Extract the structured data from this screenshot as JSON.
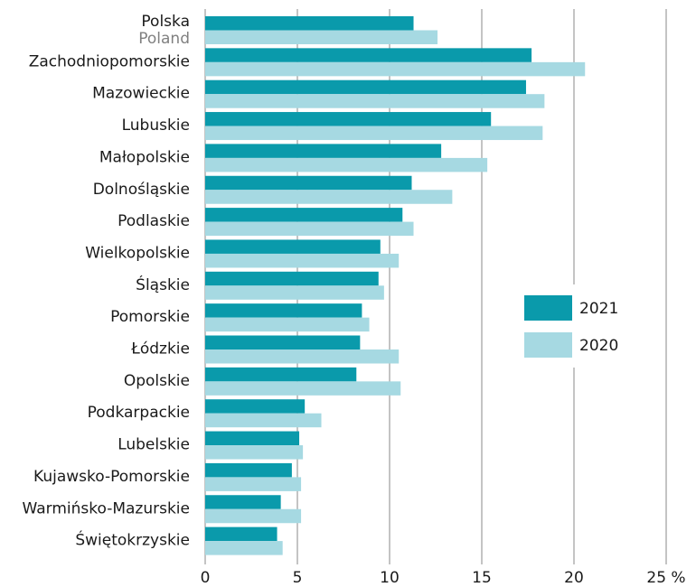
{
  "chart_data": {
    "type": "bar",
    "orientation": "horizontal",
    "categories": [
      "Polska",
      "Zachodniopomorskie",
      "Mazowieckie",
      "Lubuskie",
      "Małopolskie",
      "Dolnośląskie",
      "Podlaskie",
      "Wielkopolskie",
      "Śląskie",
      "Pomorskie",
      "Łódzkie",
      "Opolskie",
      "Podkarpackie",
      "Lubelskie",
      "Kujawsko-Pomorskie",
      "Warmińsko-Mazurskie",
      "Świętokrzyskie"
    ],
    "category_sublabels": [
      "Poland",
      null,
      null,
      null,
      null,
      null,
      null,
      null,
      null,
      null,
      null,
      null,
      null,
      null,
      null,
      null,
      null
    ],
    "series": [
      {
        "name": "2021",
        "color": "#0a9aab",
        "values": [
          11.3,
          17.7,
          17.4,
          15.5,
          12.8,
          11.2,
          10.7,
          9.5,
          9.4,
          8.5,
          8.4,
          8.2,
          5.4,
          5.1,
          4.7,
          4.1,
          3.9
        ]
      },
      {
        "name": "2020",
        "color": "#a6d9e2",
        "values": [
          12.6,
          20.6,
          18.4,
          18.3,
          15.3,
          13.4,
          11.3,
          10.5,
          9.7,
          8.9,
          10.5,
          10.6,
          6.3,
          5.3,
          5.2,
          5.2,
          4.2
        ]
      }
    ],
    "xlim": [
      0,
      25
    ],
    "xticks": [
      0,
      5,
      10,
      15,
      20,
      {
        "value": 25,
        "label": "25 %"
      }
    ],
    "grid": true,
    "legend": "right"
  }
}
